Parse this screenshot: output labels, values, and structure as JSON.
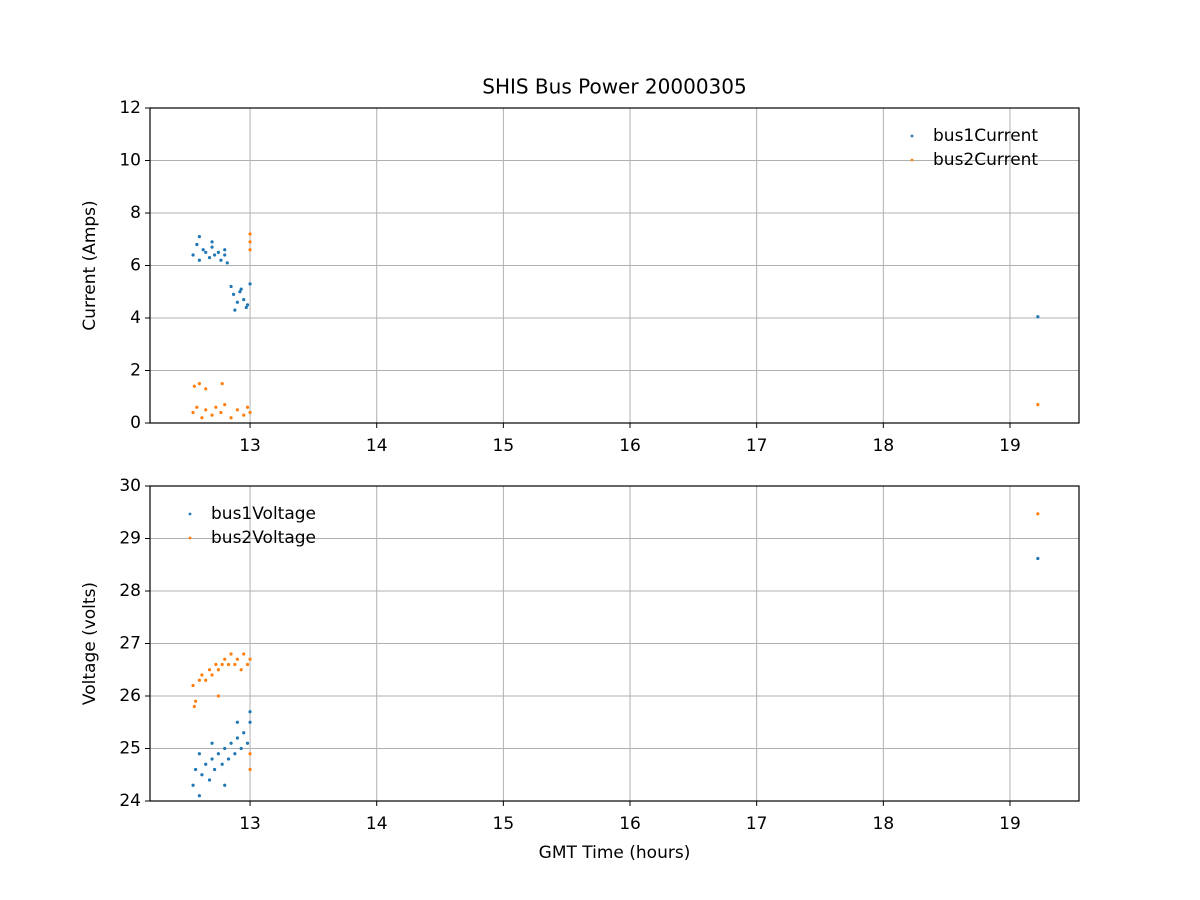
{
  "chart_data": [
    {
      "type": "scatter",
      "title": "SHIS Bus Power 20000305",
      "ylabel": "Current (Amps)",
      "xlim": [
        12.21,
        19.545
      ],
      "ylim": [
        0,
        12
      ],
      "xticks": [
        13,
        14,
        15,
        16,
        17,
        18,
        19
      ],
      "yticks": [
        0,
        2,
        4,
        6,
        8,
        10,
        12
      ],
      "grid": true,
      "legend": "upper right",
      "series": [
        {
          "name": "bus1Current",
          "color": "#1f77b4",
          "x": [
            12.55,
            12.58,
            12.6,
            12.63,
            12.65,
            12.68,
            12.7,
            12.72,
            12.75,
            12.77,
            12.8,
            12.82,
            12.85,
            12.87,
            12.9,
            12.92,
            12.95,
            12.97,
            13.0,
            12.6,
            12.7,
            12.8,
            12.88,
            12.93,
            12.98,
            19.22
          ],
          "values": [
            6.4,
            6.8,
            6.2,
            6.6,
            6.5,
            6.3,
            6.7,
            6.4,
            6.5,
            6.2,
            6.6,
            6.1,
            5.2,
            4.9,
            4.6,
            5.0,
            4.7,
            4.4,
            5.3,
            7.1,
            6.9,
            6.4,
            4.3,
            5.1,
            4.5,
            4.05
          ]
        },
        {
          "name": "bus2Current",
          "color": "#ff7f0e",
          "x": [
            12.55,
            12.58,
            12.62,
            12.65,
            12.7,
            12.73,
            12.77,
            12.8,
            12.85,
            12.9,
            12.95,
            12.98,
            13.0,
            12.56,
            12.6,
            12.65,
            12.78,
            13.0,
            13.0,
            13.0,
            19.22
          ],
          "values": [
            0.4,
            0.6,
            0.2,
            0.5,
            0.3,
            0.6,
            0.4,
            0.7,
            0.2,
            0.5,
            0.3,
            0.6,
            0.4,
            1.4,
            1.5,
            1.3,
            1.5,
            6.9,
            7.2,
            6.6,
            0.7
          ]
        }
      ]
    },
    {
      "type": "scatter",
      "ylabel": "Voltage (volts)",
      "xlabel": "GMT Time (hours)",
      "xlim": [
        12.21,
        19.545
      ],
      "ylim": [
        24,
        30
      ],
      "xticks": [
        13,
        14,
        15,
        16,
        17,
        18,
        19
      ],
      "yticks": [
        24,
        25,
        26,
        27,
        28,
        29,
        30
      ],
      "grid": true,
      "legend": "upper left",
      "series": [
        {
          "name": "bus1Voltage",
          "color": "#1f77b4",
          "x": [
            12.55,
            12.57,
            12.6,
            12.62,
            12.65,
            12.68,
            12.7,
            12.72,
            12.75,
            12.78,
            12.8,
            12.83,
            12.85,
            12.88,
            12.9,
            12.93,
            12.95,
            12.98,
            13.0,
            12.6,
            12.7,
            12.8,
            12.9,
            13.0,
            19.22
          ],
          "values": [
            24.3,
            24.6,
            24.1,
            24.5,
            24.7,
            24.4,
            24.8,
            24.6,
            24.9,
            24.7,
            25.0,
            24.8,
            25.1,
            24.9,
            25.2,
            25.0,
            25.3,
            25.1,
            25.5,
            24.9,
            25.1,
            24.3,
            25.5,
            25.7,
            28.62
          ]
        },
        {
          "name": "bus2Voltage",
          "color": "#ff7f0e",
          "x": [
            12.55,
            12.57,
            12.6,
            12.62,
            12.65,
            12.68,
            12.7,
            12.73,
            12.75,
            12.78,
            12.8,
            12.83,
            12.85,
            12.88,
            12.9,
            12.93,
            12.95,
            12.98,
            13.0,
            12.56,
            12.75,
            13.0,
            13.0,
            19.22
          ],
          "values": [
            26.2,
            25.9,
            26.3,
            26.4,
            26.3,
            26.5,
            26.4,
            26.6,
            26.5,
            26.6,
            26.7,
            26.6,
            26.8,
            26.6,
            26.7,
            26.5,
            26.8,
            26.6,
            26.7,
            25.8,
            26.0,
            24.6,
            24.9,
            29.47
          ]
        }
      ]
    }
  ]
}
